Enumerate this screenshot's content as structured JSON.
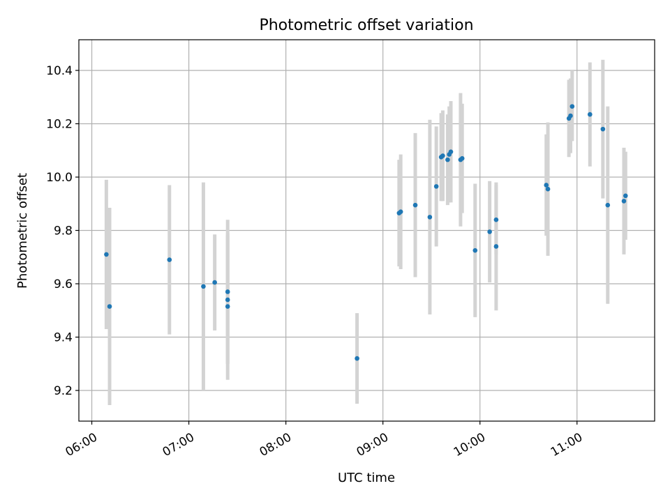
{
  "chart_data": {
    "type": "scatter",
    "title": "Photometric offset variation",
    "xlabel": "UTC time",
    "ylabel": "Photometric offset",
    "x_tick_labels": [
      "06:00",
      "07:00",
      "08:00",
      "09:00",
      "10:00",
      "11:00"
    ],
    "x_ticks_hours": [
      6,
      7,
      8,
      9,
      10,
      11
    ],
    "y_ticks": [
      9.2,
      9.4,
      9.6,
      9.8,
      10.0,
      10.2,
      10.4
    ],
    "y_tick_labels": [
      "9.2",
      "9.4",
      "9.6",
      "9.8",
      "10.0",
      "10.2",
      "10.4"
    ],
    "xlim": [
      "05:52",
      "11:48"
    ],
    "ylim": [
      9.085,
      10.515
    ],
    "grid": true,
    "colors": {
      "point": "#1f77b4",
      "errorbar": "#d3d3d3"
    },
    "series": [
      {
        "points": [
          {
            "t": "06:09",
            "y": 9.71,
            "lo": 9.43,
            "hi": 9.99
          },
          {
            "t": "06:11",
            "y": 9.515,
            "lo": 9.145,
            "hi": 9.885
          },
          {
            "t": "06:48",
            "y": 9.69,
            "lo": 9.41,
            "hi": 9.97
          },
          {
            "t": "07:09",
            "y": 9.59,
            "lo": 9.2,
            "hi": 9.98
          },
          {
            "t": "07:16",
            "y": 9.605,
            "lo": 9.425,
            "hi": 9.785
          },
          {
            "t": "07:24",
            "y": 9.57,
            "lo": 9.3,
            "hi": 9.84
          },
          {
            "t": "07:24",
            "y": 9.54,
            "lo": 9.3,
            "hi": 9.78
          },
          {
            "t": "07:24",
            "y": 9.515,
            "lo": 9.24,
            "hi": 9.79
          },
          {
            "t": "08:44",
            "y": 9.32,
            "lo": 9.15,
            "hi": 9.49
          },
          {
            "t": "09:10",
            "y": 9.865,
            "lo": 9.665,
            "hi": 10.065
          },
          {
            "t": "09:11",
            "y": 9.87,
            "lo": 9.655,
            "hi": 10.085
          },
          {
            "t": "09:20",
            "y": 9.895,
            "lo": 9.625,
            "hi": 10.165
          },
          {
            "t": "09:29",
            "y": 9.85,
            "lo": 9.485,
            "hi": 10.215
          },
          {
            "t": "09:33",
            "y": 9.965,
            "lo": 9.74,
            "hi": 10.19
          },
          {
            "t": "09:36",
            "y": 10.075,
            "lo": 9.91,
            "hi": 10.24
          },
          {
            "t": "09:37",
            "y": 10.08,
            "lo": 9.91,
            "hi": 10.25
          },
          {
            "t": "09:40",
            "y": 10.065,
            "lo": 9.895,
            "hi": 10.235
          },
          {
            "t": "09:41",
            "y": 10.085,
            "lo": 9.905,
            "hi": 10.265
          },
          {
            "t": "09:42",
            "y": 10.095,
            "lo": 9.905,
            "hi": 10.285
          },
          {
            "t": "09:48",
            "y": 10.065,
            "lo": 9.815,
            "hi": 10.315
          },
          {
            "t": "09:49",
            "y": 10.07,
            "lo": 9.865,
            "hi": 10.275
          },
          {
            "t": "09:57",
            "y": 9.725,
            "lo": 9.475,
            "hi": 9.975
          },
          {
            "t": "10:06",
            "y": 9.795,
            "lo": 9.605,
            "hi": 9.985
          },
          {
            "t": "10:10",
            "y": 9.84,
            "lo": 9.71,
            "hi": 9.97
          },
          {
            "t": "10:10",
            "y": 9.74,
            "lo": 9.5,
            "hi": 9.98
          },
          {
            "t": "10:41",
            "y": 9.97,
            "lo": 9.78,
            "hi": 10.16
          },
          {
            "t": "10:42",
            "y": 9.955,
            "lo": 9.705,
            "hi": 10.205
          },
          {
            "t": "10:55",
            "y": 10.22,
            "lo": 10.075,
            "hi": 10.365
          },
          {
            "t": "10:56",
            "y": 10.23,
            "lo": 10.09,
            "hi": 10.37
          },
          {
            "t": "10:57",
            "y": 10.265,
            "lo": 10.135,
            "hi": 10.4
          },
          {
            "t": "11:08",
            "y": 10.235,
            "lo": 10.04,
            "hi": 10.43
          },
          {
            "t": "11:16",
            "y": 10.18,
            "lo": 9.92,
            "hi": 10.44
          },
          {
            "t": "11:19",
            "y": 9.895,
            "lo": 9.525,
            "hi": 10.265
          },
          {
            "t": "11:29",
            "y": 9.91,
            "lo": 9.71,
            "hi": 10.11
          },
          {
            "t": "11:30",
            "y": 9.93,
            "lo": 9.765,
            "hi": 10.095
          }
        ]
      }
    ]
  }
}
